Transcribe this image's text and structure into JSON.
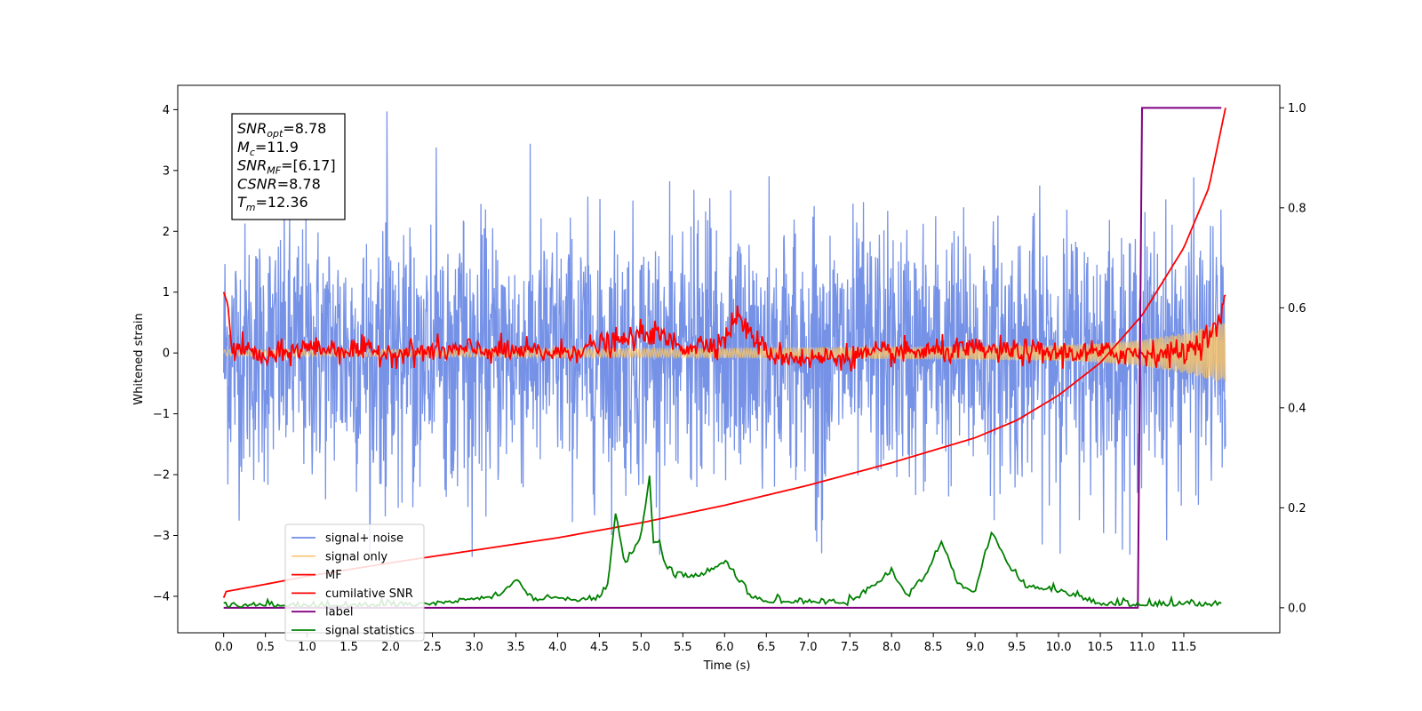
{
  "chart_data": {
    "type": "line",
    "xlabel": "Time (s)",
    "ylabel": "Whitened strain",
    "xlim": [
      -0.55,
      12.65
    ],
    "ylim": [
      -4.6,
      4.4
    ],
    "y2lim": [
      -0.05,
      1.045
    ],
    "x_ticks": [
      0.0,
      0.5,
      1.0,
      1.5,
      2.0,
      2.5,
      3.0,
      3.5,
      4.0,
      4.5,
      5.0,
      5.5,
      6.0,
      6.5,
      7.0,
      7.5,
      8.0,
      8.5,
      9.0,
      9.5,
      10.0,
      10.5,
      11.0,
      11.5
    ],
    "x_tick_labels": [
      "0.0",
      "0.5",
      "1.0",
      "1.5",
      "2.0",
      "2.5",
      "3.0",
      "3.5",
      "4.0",
      "4.5",
      "5.0",
      "5.5",
      "6.0",
      "6.5",
      "7.0",
      "7.5",
      "8.0",
      "8.5",
      "9.0",
      "9.5",
      "10.0",
      "10.5",
      "11.0",
      "11.5"
    ],
    "y_ticks": [
      -4,
      -3,
      -2,
      -1,
      0,
      1,
      2,
      3,
      4
    ],
    "y_tick_labels": [
      "−4",
      "−3",
      "−2",
      "−1",
      "0",
      "1",
      "2",
      "3",
      "4"
    ],
    "y2_ticks": [
      0.0,
      0.2,
      0.4,
      0.6,
      0.8,
      1.0
    ],
    "y2_tick_labels": [
      "0.0",
      "0.2",
      "0.4",
      "0.6",
      "0.8",
      "1.0"
    ],
    "grid": false,
    "legend_position": "lower-left",
    "annotation": [
      {
        "sym": "SNR",
        "sub": "opt",
        "value": "=8.78"
      },
      {
        "sym": "M",
        "sub": "c",
        "value": "=11.9"
      },
      {
        "sym": "SNR",
        "sub": "MF",
        "value": "=[6.17]"
      },
      {
        "sym": "CSNR",
        "sub": "",
        "value": "=8.78"
      },
      {
        "sym": "T",
        "sub": "m",
        "value": "=12.36"
      }
    ],
    "series": [
      {
        "name": "signal+ noise",
        "color": "#6f8ce6",
        "axis": "left",
        "style": "noise band",
        "envelope": {
          "x": [
            0.0,
            12.0
          ],
          "approx_range": [
            -3.4,
            4.0
          ]
        }
      },
      {
        "name": "signal only",
        "color": "#f5c26b",
        "axis": "left",
        "style": "chirp",
        "x": [
          0.0,
          2.0,
          4.0,
          6.0,
          8.0,
          9.0,
          10.0,
          10.5,
          11.0,
          11.5,
          12.0
        ],
        "amplitude": [
          0.05,
          0.06,
          0.07,
          0.08,
          0.1,
          0.11,
          0.13,
          0.16,
          0.22,
          0.33,
          0.5
        ]
      },
      {
        "name": "MF",
        "color": "#ff0000",
        "axis": "left",
        "x": [
          0.0,
          0.05,
          0.1,
          0.2,
          0.5,
          1.0,
          2.0,
          3.0,
          4.0,
          4.8,
          5.1,
          5.5,
          6.0,
          6.13,
          6.5,
          7.0,
          8.0,
          9.0,
          10.0,
          11.0,
          11.5,
          11.9,
          12.0
        ],
        "y": [
          1.0,
          0.8,
          0.0,
          0.1,
          -0.1,
          0.1,
          0.0,
          0.05,
          0.0,
          0.2,
          0.35,
          0.1,
          0.2,
          0.63,
          0.0,
          -0.1,
          0.0,
          0.05,
          0.0,
          0.0,
          0.0,
          0.4,
          0.95
        ]
      },
      {
        "name": "cumilative SNR",
        "color": "#ff0000",
        "axis": "right",
        "x": [
          0.0,
          0.01,
          0.5,
          1.0,
          2.0,
          3.0,
          4.0,
          5.0,
          6.0,
          7.0,
          8.0,
          9.0,
          9.5,
          10.0,
          10.5,
          11.0,
          11.5,
          11.8,
          12.0
        ],
        "y": [
          0.02,
          0.032,
          0.047,
          0.063,
          0.09,
          0.115,
          0.14,
          0.17,
          0.205,
          0.245,
          0.29,
          0.34,
          0.375,
          0.425,
          0.49,
          0.585,
          0.72,
          0.84,
          1.0
        ]
      },
      {
        "name": "label",
        "color": "#800080",
        "axis": "right",
        "x": [
          0.0,
          10.95,
          11.0,
          11.95
        ],
        "y": [
          0.0,
          0.0,
          1.0,
          1.0
        ]
      },
      {
        "name": "signal statistics",
        "color": "#008000",
        "axis": "right",
        "x": [
          0.0,
          0.5,
          1.0,
          2.0,
          2.5,
          3.0,
          3.3,
          3.5,
          3.7,
          4.0,
          4.2,
          4.5,
          4.6,
          4.7,
          4.8,
          4.9,
          5.0,
          5.1,
          5.15,
          5.2,
          5.3,
          5.4,
          5.5,
          5.7,
          6.0,
          6.1,
          6.3,
          6.5,
          7.0,
          7.5,
          7.7,
          8.0,
          8.2,
          8.4,
          8.6,
          8.8,
          9.0,
          9.2,
          9.4,
          9.6,
          10.0,
          10.5,
          11.0,
          11.5,
          11.95
        ],
        "y": [
          0.0,
          0.002,
          0.0,
          0.002,
          0.004,
          0.015,
          0.02,
          0.055,
          0.012,
          0.018,
          0.012,
          0.015,
          0.045,
          0.19,
          0.08,
          0.11,
          0.14,
          0.26,
          0.12,
          0.13,
          0.08,
          0.06,
          0.06,
          0.06,
          0.09,
          0.07,
          0.02,
          0.01,
          0.008,
          0.005,
          0.03,
          0.07,
          0.02,
          0.06,
          0.13,
          0.04,
          0.03,
          0.15,
          0.08,
          0.04,
          0.03,
          0.005,
          0.003,
          0.004,
          0.002
        ]
      }
    ]
  }
}
